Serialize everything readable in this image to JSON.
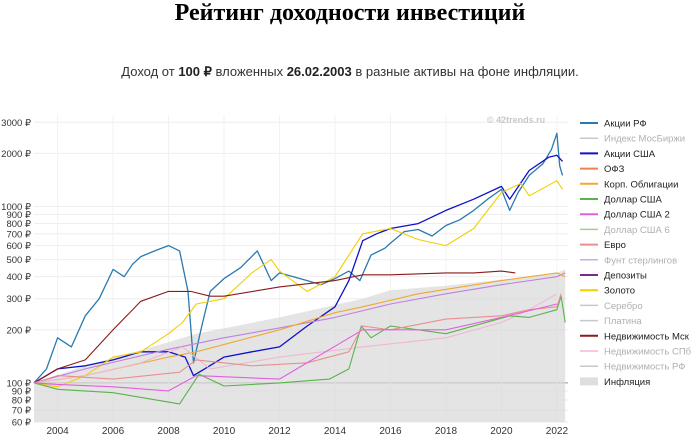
{
  "header": {
    "title": "Рейтинг доходности инвестиций",
    "sub_prefix": "Доход от ",
    "sub_amount": "100 ₽",
    "sub_mid": " вложенных ",
    "sub_date": "26.02.2003",
    "sub_suffix": " в разные активы на фоне инфляции."
  },
  "watermark": "© 42trends.ru",
  "chart_data": {
    "type": "line",
    "y_scale": "log",
    "ylim": [
      60,
      3300
    ],
    "xlim": [
      2003.15,
      2022.4
    ],
    "y_ticks": [
      {
        "v": 3000,
        "label": "3000 ₽"
      },
      {
        "v": 2000,
        "label": "2000 ₽"
      },
      {
        "v": 1000,
        "label": "1000 ₽"
      },
      {
        "v": 900,
        "label": "900 ₽"
      },
      {
        "v": 800,
        "label": "800 ₽"
      },
      {
        "v": 700,
        "label": "700 ₽"
      },
      {
        "v": 600,
        "label": "600 ₽"
      },
      {
        "v": 500,
        "label": "500 ₽"
      },
      {
        "v": 400,
        "label": "400 ₽"
      },
      {
        "v": 300,
        "label": "300 ₽"
      },
      {
        "v": 200,
        "label": "200 ₽"
      },
      {
        "v": 100,
        "label": "100 ₽"
      },
      {
        "v": 90,
        "label": "90 ₽"
      },
      {
        "v": 80,
        "label": "80 ₽"
      },
      {
        "v": 70,
        "label": "70 ₽"
      },
      {
        "v": 60,
        "label": "60 ₽"
      }
    ],
    "x_ticks": [
      {
        "v": 2004,
        "label": "2004"
      },
      {
        "v": 2006,
        "label": "2006"
      },
      {
        "v": 2008,
        "label": "2008"
      },
      {
        "v": 2010,
        "label": "2010"
      },
      {
        "v": 2012,
        "label": "2012"
      },
      {
        "v": 2014,
        "label": "2014"
      },
      {
        "v": 2016,
        "label": "2016"
      },
      {
        "v": 2018,
        "label": "2018"
      },
      {
        "v": 2020,
        "label": "2020"
      },
      {
        "v": 2022,
        "label": "2022"
      }
    ],
    "series": [
      {
        "name": "Инфляция",
        "color": "#d9d9d9",
        "kind": "area",
        "x": [
          2003.15,
          2005,
          2008,
          2009,
          2012,
          2015,
          2016,
          2018,
          2020,
          2021,
          2022,
          2022.3
        ],
        "y": [
          100,
          125,
          170,
          190,
          235,
          300,
          335,
          355,
          385,
          400,
          420,
          440
        ]
      },
      {
        "name": "Акции РФ",
        "color": "#2a7ab0",
        "x": [
          2003.15,
          2003.6,
          2004,
          2004.5,
          2005,
          2005.5,
          2006,
          2006.4,
          2006.7,
          2007,
          2007.5,
          2008.0,
          2008.4,
          2008.7,
          2008.9,
          2009.2,
          2009.5,
          2010,
          2010.6,
          2011.2,
          2011.7,
          2012,
          2012.5,
          2013,
          2013.5,
          2014,
          2014.5,
          2014.9,
          2015.3,
          2015.8,
          2016,
          2016.5,
          2017,
          2017.5,
          2018,
          2018.5,
          2019,
          2019.5,
          2020,
          2020.3,
          2020.6,
          2021,
          2021.5,
          2021.8,
          2022.0,
          2022.1,
          2022.2
        ],
        "y": [
          100,
          120,
          180,
          160,
          240,
          300,
          440,
          400,
          470,
          520,
          560,
          600,
          560,
          330,
          130,
          210,
          330,
          390,
          450,
          560,
          380,
          420,
          400,
          380,
          360,
          390,
          430,
          380,
          530,
          580,
          620,
          720,
          740,
          680,
          780,
          840,
          950,
          1100,
          1250,
          950,
          1200,
          1500,
          1750,
          2100,
          2600,
          1700,
          1500
        ]
      },
      {
        "name": "Акции США",
        "color": "#1010c8",
        "x": [
          2003.15,
          2004,
          2005,
          2006,
          2007,
          2008,
          2008.6,
          2008.9,
          2009.3,
          2010,
          2011,
          2012,
          2013,
          2014,
          2014.5,
          2015.0,
          2015.5,
          2016,
          2017,
          2018,
          2019,
          2020,
          2020.3,
          2021,
          2021.7,
          2022.0,
          2022.2
        ],
        "y": [
          100,
          120,
          125,
          135,
          150,
          150,
          140,
          110,
          120,
          140,
          150,
          160,
          210,
          270,
          380,
          640,
          700,
          750,
          800,
          950,
          1100,
          1300,
          1100,
          1600,
          1900,
          1950,
          1800
        ]
      },
      {
        "name": "Золото",
        "color": "#f0d000",
        "x": [
          2003.15,
          2004,
          2005,
          2006,
          2007,
          2008,
          2008.5,
          2009,
          2010,
          2011,
          2011.7,
          2012,
          2013,
          2014,
          2015,
          2016,
          2017,
          2018,
          2019,
          2020,
          2020.7,
          2021,
          2022.0,
          2022.2
        ],
        "y": [
          100,
          95,
          110,
          140,
          150,
          190,
          220,
          280,
          300,
          420,
          500,
          430,
          330,
          400,
          700,
          750,
          650,
          600,
          750,
          1200,
          1350,
          1150,
          1400,
          1250
        ]
      },
      {
        "name": "Недвижимость Мск",
        "color": "#8b1a1a",
        "x": [
          2003.15,
          2004,
          2005,
          2006,
          2007,
          2008,
          2008.8,
          2009.5,
          2010,
          2012,
          2014,
          2015,
          2016,
          2018,
          2019,
          2020,
          2020.5
        ],
        "y": [
          100,
          120,
          135,
          200,
          290,
          330,
          330,
          310,
          310,
          350,
          380,
          410,
          410,
          420,
          420,
          430,
          420
        ]
      },
      {
        "name": "Депозиты",
        "color": "#c080e0",
        "x": [
          2003.15,
          2005,
          2008,
          2010,
          2012,
          2014,
          2016,
          2018,
          2020,
          2022,
          2022.3
        ],
        "y": [
          100,
          120,
          155,
          180,
          205,
          235,
          280,
          320,
          360,
          400,
          420
        ]
      },
      {
        "name": "Корп. Облигации",
        "color": "#f0a830",
        "x": [
          2003.15,
          2005,
          2008,
          2009,
          2012,
          2014,
          2015,
          2017,
          2020,
          2022,
          2022.3
        ],
        "y": [
          100,
          110,
          140,
          150,
          200,
          250,
          270,
          320,
          380,
          420,
          400
        ]
      },
      {
        "name": "Недвижимость СПб",
        "color": "#f0b8d0",
        "x": [
          2003.15,
          2005,
          2007,
          2008.5,
          2009.5,
          2012,
          2015,
          2018,
          2020,
          2021,
          2022
        ],
        "y": [
          100,
          110,
          130,
          160,
          120,
          140,
          160,
          180,
          220,
          260,
          320
        ]
      },
      {
        "name": "Доллар США",
        "color": "#5ab34c",
        "x": [
          2003.15,
          2004,
          2006,
          2008.4,
          2009.1,
          2010,
          2012,
          2013.8,
          2014.5,
          2014.95,
          2015.3,
          2016,
          2018,
          2020.3,
          2021,
          2022.0,
          2022.15,
          2022.3
        ],
        "y": [
          100,
          92,
          88,
          76,
          112,
          96,
          100,
          105,
          120,
          210,
          180,
          210,
          190,
          240,
          235,
          260,
          310,
          220
        ]
      },
      {
        "name": "Евро",
        "color": "#e89090",
        "x": [
          2003.15,
          2004,
          2006,
          2008.4,
          2009,
          2011,
          2013,
          2014.5,
          2015,
          2016,
          2018,
          2020,
          2021,
          2022.0,
          2022.15
        ],
        "y": [
          100,
          110,
          105,
          115,
          135,
          125,
          130,
          150,
          210,
          200,
          230,
          240,
          260,
          270,
          320
        ]
      },
      {
        "name": "Доллар США 2",
        "color": "#e060e0",
        "x": [
          2003.15,
          2004,
          2006,
          2008,
          2009,
          2012,
          2015,
          2018,
          2020,
          2022
        ],
        "y": [
          100,
          98,
          95,
          90,
          110,
          105,
          200,
          200,
          235,
          280
        ]
      }
    ],
    "legend": [
      {
        "name": "Акции РФ",
        "color": "#2a7ab0",
        "active": true
      },
      {
        "name": "Индекс МосБиржи",
        "color": "#c8c8c8",
        "active": false
      },
      {
        "name": "Акции США",
        "color": "#1010c8",
        "active": true
      },
      {
        "name": "ОФЗ",
        "color": "#f08050",
        "active": true
      },
      {
        "name": "Корп. Облигации",
        "color": "#f0a830",
        "active": true
      },
      {
        "name": "Доллар США",
        "color": "#5ab34c",
        "active": true
      },
      {
        "name": "Доллар США 2",
        "color": "#e060e0",
        "active": true
      },
      {
        "name": "Доллар США 6",
        "color": "#a0d090",
        "active": false
      },
      {
        "name": "Евро",
        "color": "#e89090",
        "active": true
      },
      {
        "name": "Фунт стерлингов",
        "color": "#d0a8e8",
        "active": false
      },
      {
        "name": "Депозиты",
        "color": "#7a2a8a",
        "active": true
      },
      {
        "name": "Золото",
        "color": "#f0d000",
        "active": true
      },
      {
        "name": "Серебро",
        "color": "#c8c8c8",
        "active": false
      },
      {
        "name": "Платина",
        "color": "#c8c8c8",
        "active": false
      },
      {
        "name": "Недвижимость Мск",
        "color": "#8b1a1a",
        "active": true
      },
      {
        "name": "Недвижимость СПб",
        "color": "#f0b8d0",
        "active": false
      },
      {
        "name": "Недвижимость РФ",
        "color": "#c8c8c8",
        "active": false
      },
      {
        "name": "Инфляция",
        "color": "#dedede",
        "active": true,
        "box": true
      }
    ]
  }
}
